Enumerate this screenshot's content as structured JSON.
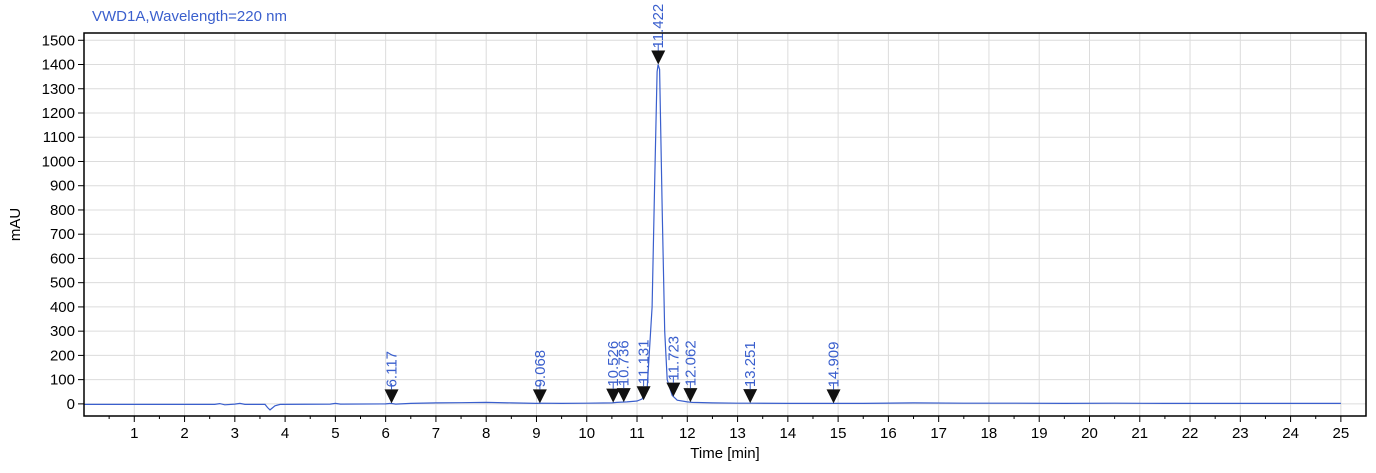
{
  "chart_data": {
    "type": "line",
    "title": "VWD1A,Wavelength=220 nm",
    "xlabel": "Time [min]",
    "ylabel": "mAU",
    "xlim": [
      0,
      25.5
    ],
    "ylim": [
      -50,
      1530
    ],
    "xticks": [
      1,
      2,
      3,
      4,
      5,
      6,
      7,
      8,
      9,
      10,
      11,
      12,
      13,
      14,
      15,
      16,
      17,
      18,
      19,
      20,
      21,
      22,
      23,
      24,
      25
    ],
    "yticks": [
      0,
      100,
      200,
      300,
      400,
      500,
      600,
      700,
      800,
      900,
      1000,
      1100,
      1200,
      1300,
      1400,
      1500
    ],
    "grid": true,
    "line_color": "#3a5fcd",
    "series": [
      {
        "x": [
          0,
          2.6,
          2.7,
          2.8,
          3.0,
          3.1,
          3.2,
          3.6,
          3.65,
          3.7,
          3.8,
          3.9,
          4.9,
          5.0,
          5.1,
          6.0,
          6.1,
          6.2,
          6.5,
          7.0,
          7.5,
          8.0,
          8.5,
          9.0,
          9.1,
          9.5,
          10.0,
          10.5,
          10.6,
          10.8,
          11.0,
          11.1,
          11.2,
          11.3,
          11.35,
          11.4,
          11.42,
          11.45,
          11.5,
          11.55,
          11.6,
          11.7,
          11.8,
          12.0,
          12.1,
          12.5,
          13.0,
          13.3,
          14.0,
          14.9,
          15.5,
          16.5,
          17.5,
          18.5,
          19.5,
          20.5,
          21.5,
          22.5,
          23.5,
          24.5,
          25.0
        ],
        "y": [
          -2,
          -2,
          1,
          -4,
          -1,
          2,
          -2,
          -2,
          -15,
          -25,
          -8,
          -2,
          -1,
          2,
          -1,
          0,
          2,
          -1,
          2,
          4,
          5,
          6,
          4,
          2,
          3,
          2,
          3,
          4,
          6,
          8,
          12,
          20,
          60,
          400,
          900,
          1370,
          1400,
          1380,
          800,
          300,
          100,
          35,
          15,
          8,
          6,
          4,
          3,
          3,
          2,
          2,
          2,
          4,
          3,
          3,
          2,
          3,
          2,
          2,
          2,
          2,
          2
        ]
      }
    ],
    "peaks": [
      {
        "x": 6.117,
        "y": 2,
        "label": "6.117"
      },
      {
        "x": 9.068,
        "y": 2,
        "label": "9.068"
      },
      {
        "x": 10.526,
        "y": 5,
        "label": "10.526"
      },
      {
        "x": 10.736,
        "y": 7,
        "label": "10.736"
      },
      {
        "x": 11.131,
        "y": 15,
        "label": "11.131"
      },
      {
        "x": 11.422,
        "y": 1400,
        "label": "11.422"
      },
      {
        "x": 11.723,
        "y": 30,
        "label": "11.723"
      },
      {
        "x": 12.062,
        "y": 7,
        "label": "12.062"
      },
      {
        "x": 13.251,
        "y": 3,
        "label": "13.251"
      },
      {
        "x": 14.909,
        "y": 2,
        "label": "14.909"
      }
    ]
  }
}
